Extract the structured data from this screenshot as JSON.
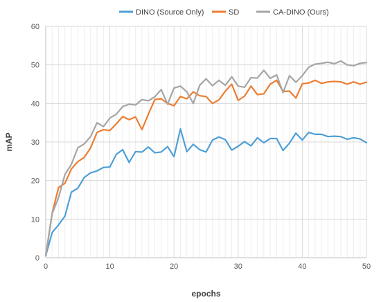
{
  "chart_data": {
    "type": "line",
    "xlabel": "epochs",
    "ylabel": "mAP",
    "xlim": [
      0,
      50
    ],
    "ylim": [
      0,
      60
    ],
    "xticks": [
      0,
      10,
      20,
      30,
      40,
      50
    ],
    "yticks": [
      0,
      10,
      20,
      30,
      40,
      50,
      60
    ],
    "grid": "horizontal and vertical",
    "legend_position": "top",
    "x": [
      0,
      1,
      2,
      3,
      4,
      5,
      6,
      7,
      8,
      9,
      10,
      11,
      12,
      13,
      14,
      15,
      16,
      17,
      18,
      19,
      20,
      21,
      22,
      23,
      24,
      25,
      26,
      27,
      28,
      29,
      30,
      31,
      32,
      33,
      34,
      35,
      36,
      37,
      38,
      39,
      40,
      41,
      42,
      43,
      44,
      45,
      46,
      47,
      48,
      49,
      50
    ],
    "series": [
      {
        "name": "DINO (Source Only)",
        "color": "#4e9fd6",
        "values": [
          0.5,
          6.5,
          8.5,
          10.8,
          17,
          18,
          20.8,
          22,
          22.5,
          23.4,
          23.5,
          26.8,
          28,
          24.7,
          27.5,
          27.4,
          28.7,
          27.2,
          27.4,
          28.8,
          26.2,
          33.4,
          27.5,
          29.4,
          28,
          27.4,
          30.5,
          31.3,
          30.6,
          27.9,
          28.9,
          30.1,
          29,
          31.1,
          29.8,
          30.9,
          30.9,
          27.8,
          29.7,
          32.3,
          30.5,
          32.5,
          32,
          32,
          31.4,
          31.5,
          31.4,
          30.7,
          31.1,
          30.8,
          29.8
        ]
      },
      {
        "name": "SD",
        "color": "#ed7d31",
        "values": [
          0.5,
          11.5,
          18.2,
          19.3,
          23,
          24.9,
          26,
          28.5,
          32.5,
          33.2,
          33,
          34.7,
          36.6,
          35.8,
          36.5,
          33.2,
          37.2,
          41,
          41.2,
          40,
          39.4,
          41.8,
          41.2,
          43,
          42,
          41.8,
          40,
          40.9,
          43.2,
          45,
          40.8,
          41.9,
          44.5,
          42.3,
          42.5,
          45,
          46,
          43.1,
          43.2,
          41.4,
          45.1,
          45.3,
          46,
          45.2,
          45.6,
          45.7,
          45.6,
          45,
          45.6,
          45,
          45.5
        ]
      },
      {
        "name": "CA-DINO (Ours)",
        "color": "#a5a5a5",
        "values": [
          0.5,
          11.4,
          15.6,
          21.6,
          24.2,
          28.5,
          29.5,
          31.4,
          35,
          34,
          36.2,
          37.2,
          39.2,
          39.8,
          39.6,
          41,
          40.7,
          41.7,
          43.6,
          39.8,
          44,
          44.5,
          43,
          40,
          44.7,
          46.4,
          44.6,
          46,
          44.7,
          46.9,
          44.5,
          44.2,
          46.7,
          46.6,
          48.6,
          46.5,
          47.4,
          42.8,
          47.2,
          45.5,
          47.2,
          49.4,
          50.2,
          50.4,
          50.7,
          50.3,
          51,
          50,
          49.8,
          50.4,
          50.6
        ]
      }
    ]
  },
  "legend": {
    "items": [
      {
        "label": "DINO (Source Only)",
        "color": "#4e9fd6"
      },
      {
        "label": "SD",
        "color": "#ed7d31"
      },
      {
        "label": "CA-DINO (Ours)",
        "color": "#a5a5a5"
      }
    ]
  }
}
